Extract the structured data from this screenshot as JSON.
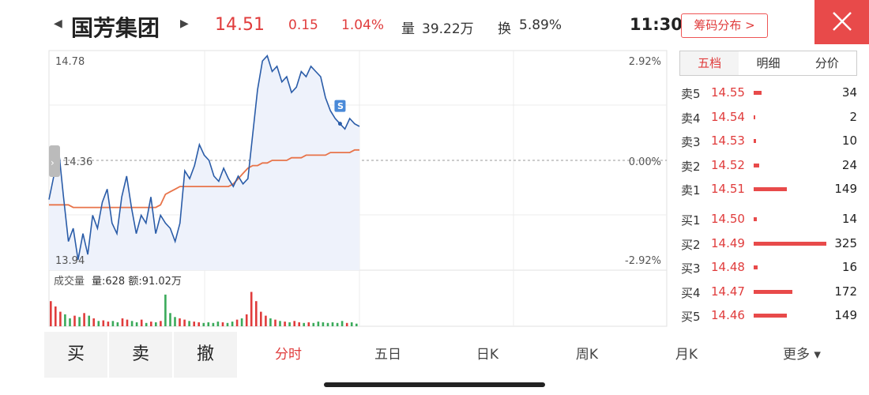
{
  "stock": {
    "name": "国芳集团",
    "price": "14.51",
    "change": "0.15",
    "change_pct": "1.04%",
    "volume_label": "量",
    "volume": "39.22万",
    "turnover_label": "换",
    "turnover": "5.89%",
    "time": "11:30",
    "chip_button": "筹码分布 >"
  },
  "chart": {
    "price_high": "14.78",
    "price_mid": "14.36",
    "price_low": "13.94",
    "pct_high": "2.92%",
    "pct_mid": "0.00%",
    "pct_low": "-2.92%",
    "volume_title": "成交量",
    "volume_info": "量:628 额:91.02万",
    "marker_label": "S"
  },
  "chart_data": {
    "type": "line",
    "title": "",
    "ylim": [
      13.94,
      14.78
    ],
    "baseline": 14.36,
    "series": [
      {
        "values": [
          14.21,
          14.3,
          14.4,
          14.22,
          14.05,
          14.1,
          13.98,
          14.08,
          14.0,
          14.15,
          14.1,
          14.2,
          14.25,
          14.12,
          14.08,
          14.22,
          14.3,
          14.18,
          14.08,
          14.15,
          14.12,
          14.22,
          14.08,
          14.15,
          14.12,
          14.1,
          14.05,
          14.12,
          14.32,
          14.29,
          14.34,
          14.42,
          14.38,
          14.36,
          14.3,
          14.28,
          14.33,
          14.29,
          14.26,
          14.3,
          14.27,
          14.29,
          14.46,
          14.63,
          14.74,
          14.76,
          14.7,
          14.72,
          14.66,
          14.68,
          14.62,
          14.64,
          14.7,
          14.68,
          14.72,
          14.7,
          14.68,
          14.6,
          14.55,
          14.52,
          14.5,
          14.48,
          14.52,
          14.5,
          14.49
        ]
      },
      {
        "values": [
          14.19,
          14.19,
          14.19,
          14.19,
          14.19,
          14.18,
          14.18,
          14.18,
          14.18,
          14.18,
          14.18,
          14.18,
          14.18,
          14.18,
          14.18,
          14.18,
          14.18,
          14.18,
          14.18,
          14.18,
          14.18,
          14.18,
          14.18,
          14.19,
          14.23,
          14.24,
          14.25,
          14.26,
          14.26,
          14.26,
          14.26,
          14.26,
          14.26,
          14.26,
          14.26,
          14.26,
          14.26,
          14.26,
          14.27,
          14.29,
          14.31,
          14.33,
          14.34,
          14.34,
          14.35,
          14.35,
          14.36,
          14.36,
          14.36,
          14.36,
          14.37,
          14.37,
          14.37,
          14.38,
          14.38,
          14.38,
          14.38,
          14.38,
          14.39,
          14.39,
          14.39,
          14.39,
          14.39,
          14.4,
          14.4
        ]
      }
    ],
    "volume_values": [
      38,
      30,
      22,
      18,
      12,
      16,
      14,
      20,
      16,
      12,
      8,
      9,
      7,
      8,
      6,
      12,
      10,
      8,
      6,
      10,
      5,
      7,
      6,
      8,
      48,
      20,
      14,
      12,
      10,
      8,
      7,
      6,
      5,
      6,
      5,
      7,
      6,
      5,
      7,
      10,
      12,
      18,
      52,
      38,
      22,
      16,
      12,
      10,
      8,
      7,
      6,
      8,
      6,
      5,
      6,
      5,
      7,
      6,
      5,
      6,
      5,
      8,
      5,
      6,
      4
    ]
  },
  "orderbook": {
    "tabs": [
      "五档",
      "明细",
      "分价"
    ],
    "asks": [
      {
        "side": "卖5",
        "price": "14.55",
        "vol": "34",
        "n": 34
      },
      {
        "side": "卖4",
        "price": "14.54",
        "vol": "2",
        "n": 2
      },
      {
        "side": "卖3",
        "price": "14.53",
        "vol": "10",
        "n": 10
      },
      {
        "side": "卖2",
        "price": "14.52",
        "vol": "24",
        "n": 24
      },
      {
        "side": "卖1",
        "price": "14.51",
        "vol": "149",
        "n": 149
      }
    ],
    "bids": [
      {
        "side": "买1",
        "price": "14.50",
        "vol": "14",
        "n": 14
      },
      {
        "side": "买2",
        "price": "14.49",
        "vol": "325",
        "n": 325
      },
      {
        "side": "买3",
        "price": "14.48",
        "vol": "16",
        "n": 16
      },
      {
        "side": "买4",
        "price": "14.47",
        "vol": "172",
        "n": 172
      },
      {
        "side": "买5",
        "price": "14.46",
        "vol": "149",
        "n": 149
      }
    ]
  },
  "bottom": {
    "buy": "买",
    "sell": "卖",
    "cancel": "撤",
    "tabs": [
      "分时",
      "五日",
      "日K",
      "周K",
      "月K",
      "更多 ▾"
    ]
  },
  "colors": {
    "up": "#e03c3c",
    "price_line": "#2a5ca8",
    "avg_line": "#e8744a",
    "fill": "#eef2fb",
    "down": "#3aaa5a"
  }
}
